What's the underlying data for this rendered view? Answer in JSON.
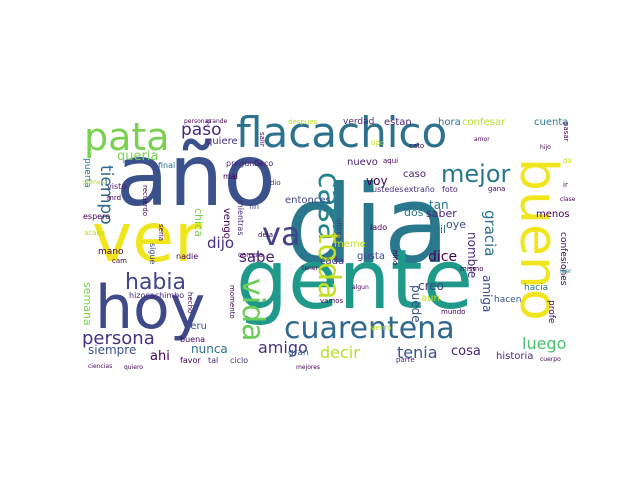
{
  "words": [
    {
      "text": "año",
      "color": "#3b518b"
    },
    {
      "text": "dia",
      "color": "#2a788e"
    },
    {
      "text": "gente",
      "color": "#1f9a8a"
    },
    {
      "text": "ver",
      "color": "#f1e51d"
    },
    {
      "text": "hoy",
      "color": "#3e4a89"
    },
    {
      "text": "flacachico",
      "color": "#2c728e"
    },
    {
      "text": "pata",
      "color": "#7ad151"
    },
    {
      "text": "bueno",
      "color": "#f1e51d"
    },
    {
      "text": "cuarentena",
      "color": "#31688e"
    },
    {
      "text": "casa",
      "color": "#25858e"
    },
    {
      "text": "toda",
      "color": "#c2df23"
    },
    {
      "text": "vida",
      "color": "#6ccd5a"
    },
    {
      "text": "va",
      "color": "#404387"
    },
    {
      "text": "mejor",
      "color": "#2a788e"
    },
    {
      "text": "habia",
      "color": "#414487"
    },
    {
      "text": "persona",
      "color": "#46337e"
    },
    {
      "text": "queria",
      "color": "#7ad151"
    },
    {
      "text": "paso",
      "color": "#482878"
    },
    {
      "text": "tiempo",
      "color": "#31688e"
    },
    {
      "text": "amigo",
      "color": "#46327e"
    },
    {
      "text": "decir",
      "color": "#b5de2b"
    },
    {
      "text": "tenia",
      "color": "#3b528b"
    },
    {
      "text": "luego",
      "color": "#4ac16d"
    },
    {
      "text": "gracia",
      "color": "#2d708e"
    },
    {
      "text": "sabe",
      "color": "#482173"
    },
    {
      "text": "dijo",
      "color": "#472d7b"
    },
    {
      "text": "siempre",
      "color": "#3b528b"
    },
    {
      "text": "nunca",
      "color": "#2e6f8e"
    },
    {
      "text": "ahi",
      "color": "#440154"
    },
    {
      "text": "amiga",
      "color": "#3e4989"
    },
    {
      "text": "nombre",
      "color": "#472d7b"
    },
    {
      "text": "dice",
      "color": "#440154"
    },
    {
      "text": "semana",
      "color": "#7ad151"
    },
    {
      "text": "cosa",
      "color": "#482576"
    },
    {
      "text": "puede",
      "color": "#3b528b"
    },
    {
      "text": "creo",
      "color": "#414487"
    },
    {
      "text": "voy",
      "color": "#440154"
    },
    {
      "text": "tan",
      "color": "#2a788e"
    },
    {
      "text": "saber",
      "color": "#482576"
    },
    {
      "text": "gil",
      "color": "#2c728e"
    },
    {
      "text": "oye",
      "color": "#3b528b"
    },
    {
      "text": "dos",
      "color": "#2a788e"
    },
    {
      "text": "menos",
      "color": "#440154"
    },
    {
      "text": "meme",
      "color": "#c2df23"
    },
    {
      "text": "gusta",
      "color": "#3e4989"
    },
    {
      "text": "cada",
      "color": "#46327e"
    },
    {
      "text": "hora",
      "color": "#2e6f8e"
    },
    {
      "text": "confesar",
      "color": "#b5de2b"
    },
    {
      "text": "cuenta",
      "color": "#2a788e"
    },
    {
      "text": "estan",
      "color": "#482878"
    },
    {
      "text": "verdad",
      "color": "#472c7a"
    },
    {
      "text": "entonces",
      "color": "#3e4989"
    },
    {
      "text": "nuevo",
      "color": "#482173"
    },
    {
      "text": "caso",
      "color": "#481b6d"
    },
    {
      "text": "quiere",
      "color": "#472d7b"
    },
    {
      "text": "chica",
      "color": "#7ad151"
    },
    {
      "text": "vengo",
      "color": "#440154"
    },
    {
      "text": "historia",
      "color": "#482878"
    },
    {
      "text": "profe",
      "color": "#440154"
    },
    {
      "text": "confesiones",
      "color": "#440154"
    },
    {
      "text": "aun",
      "color": "#c2df23"
    },
    {
      "text": "gran",
      "color": "#31688e"
    },
    {
      "text": "hacen",
      "color": "#3b528b"
    },
    {
      "text": "hacia",
      "color": "#2a788e"
    },
    {
      "text": "peru",
      "color": "#3b518b"
    },
    {
      "text": "puerta",
      "color": "#2a788e"
    },
    {
      "text": "mano",
      "color": "#440154"
    },
    {
      "text": "hizocachimbo",
      "color": "#482878"
    },
    {
      "text": "buena",
      "color": "#440154"
    },
    {
      "text": "ustedes",
      "color": "#46337e"
    },
    {
      "text": "pregunta",
      "color": "#482878"
    },
    {
      "text": "favor",
      "color": "#440154"
    },
    {
      "text": "tal",
      "color": "#482878"
    },
    {
      "text": "ciclo",
      "color": "#46327e"
    },
    {
      "text": "foto",
      "color": "#482173"
    },
    {
      "text": "lado",
      "color": "#440154"
    },
    {
      "text": "mal",
      "color": "#440154"
    },
    {
      "text": "fin",
      "color": "#3e4989"
    },
    {
      "text": "nadie",
      "color": "#440154"
    },
    {
      "text": "sigue",
      "color": "#3e4989"
    },
    {
      "text": "final",
      "color": "#2c728e"
    },
    {
      "text": "espero",
      "color": "#440154"
    },
    {
      "text": "visto",
      "color": "#481b6d"
    },
    {
      "text": "extraño",
      "color": "#46327e"
    },
    {
      "text": "gana",
      "color": "#440154"
    },
    {
      "text": "parte",
      "color": "#482878"
    },
    {
      "text": "mismo",
      "color": "#440154"
    },
    {
      "text": "flaco",
      "color": "#482576"
    },
    {
      "text": "mundo",
      "color": "#440154"
    },
    {
      "text": "mientras",
      "color": "#482878"
    },
    {
      "text": "tipo",
      "color": "#c2df23"
    },
    {
      "text": "despues",
      "color": "#c2df23"
    },
    {
      "text": "aqui",
      "color": "#440154"
    },
    {
      "text": "cato",
      "color": "#440154"
    },
    {
      "text": "dio",
      "color": "#46327e"
    },
    {
      "text": "mrd",
      "color": "#440154"
    },
    {
      "text": "cam",
      "color": "#440154"
    },
    {
      "text": "deja",
      "color": "#440154"
    },
    {
      "text": "vamos",
      "color": "#440154"
    },
    {
      "text": "siento",
      "color": "#b5de2b"
    },
    {
      "text": "carrera",
      "color": "#440154"
    },
    {
      "text": "momento",
      "color": "#440154"
    },
    {
      "text": "hecho",
      "color": "#440154"
    },
    {
      "text": "ultimo",
      "color": "#46327e"
    },
    {
      "text": "acaba",
      "color": "#b5de2b"
    },
    {
      "text": "pasar",
      "color": "#440154"
    },
    {
      "text": "quiero",
      "color": "#440154"
    },
    {
      "text": "ir",
      "color": "#440154"
    },
    {
      "text": "da",
      "color": "#c2df23"
    },
    {
      "text": "leer",
      "color": "#2a788e"
    },
    {
      "text": "mejores",
      "color": "#440154"
    },
    {
      "text": "ciencias",
      "color": "#440154"
    },
    {
      "text": "grande",
      "color": "#440154"
    },
    {
      "text": "personas",
      "color": "#440154"
    },
    {
      "text": "recuerdo",
      "color": "#440154"
    },
    {
      "text": "primera",
      "color": "#b5de2b"
    },
    {
      "text": "tener",
      "color": "#440154"
    },
    {
      "text": "salir",
      "color": "#440154"
    },
    {
      "text": "seria",
      "color": "#440154"
    },
    {
      "text": "algun",
      "color": "#440154"
    },
    {
      "text": "clase",
      "color": "#440154"
    },
    {
      "text": "nino",
      "color": "#440154"
    },
    {
      "text": "hijo",
      "color": "#440154"
    },
    {
      "text": "cuerpo",
      "color": "#440154"
    },
    {
      "text": "amor",
      "color": "#440154"
    }
  ]
}
